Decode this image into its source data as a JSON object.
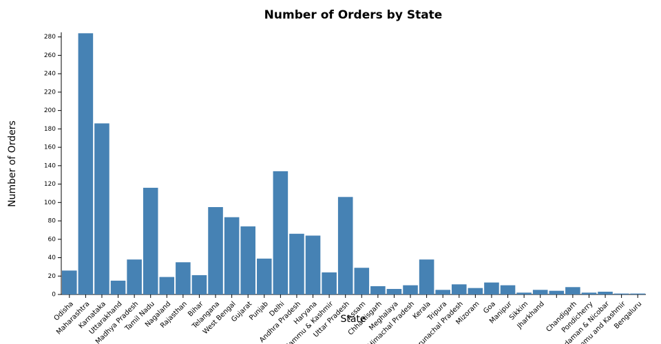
{
  "chart_data": {
    "type": "bar",
    "title": "Number of Orders by State",
    "x_label": "State",
    "y_label": "Number of Orders",
    "categories": [
      "Odisha",
      "Maharashtra",
      "Karnataka",
      "Uttarakhand",
      "Madhya Pradesh",
      "Tamil Nadu",
      "Nagaland",
      "Rajasthan",
      "Bihar",
      "Telangana",
      "West Bengal",
      "Gujarat",
      "Punjab",
      "Delhi",
      "Andhra Pradesh",
      "Haryana",
      "Jammu & Kashmir",
      "Uttar Pradesh",
      "Assam",
      "Chhattisgarh",
      "Meghalaya",
      "Himachal Pradesh",
      "Kerala",
      "Tripura",
      "Arunachal Pradesh",
      "Mizoram",
      "Goa",
      "Manipur",
      "Sikkim",
      "Jharkhand",
      null,
      "Chandigarh",
      "Pondicherry",
      "Andaman & Nicobar",
      "Jammu and Kashmir",
      "Bengaluru"
    ],
    "values": [
      26,
      284,
      186,
      15,
      38,
      116,
      19,
      35,
      21,
      95,
      84,
      74,
      39,
      134,
      66,
      64,
      24,
      106,
      29,
      9,
      6,
      10,
      38,
      5,
      11,
      7,
      13,
      10,
      2,
      5,
      4,
      8,
      2,
      3,
      1,
      1
    ],
    "color": "#4682b4",
    "ylim": [
      0,
      285
    ],
    "yticks": [
      0,
      20,
      40,
      60,
      80,
      100,
      120,
      140,
      160,
      180,
      200,
      220,
      240,
      260,
      280
    ]
  }
}
